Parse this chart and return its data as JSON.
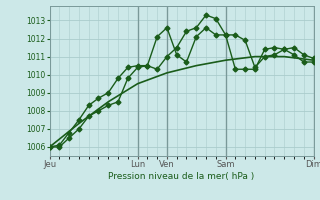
{
  "xlabel": "Pression niveau de la mer( hPa )",
  "ylim": [
    1005.5,
    1013.8
  ],
  "yticks": [
    1006,
    1007,
    1008,
    1009,
    1010,
    1011,
    1012,
    1013
  ],
  "background_color": "#cce8e8",
  "grid_color": "#aacccc",
  "line_color": "#1a5c1a",
  "xtick_labels": [
    "Jeu",
    "Lun",
    "Ven",
    "Sam",
    "Dim"
  ],
  "xtick_positions": [
    0,
    9,
    12,
    18,
    27
  ],
  "vline_positions": [
    9,
    12,
    18,
    27
  ],
  "series1_x": [
    0,
    1,
    2,
    3,
    4,
    5,
    6,
    7,
    8,
    9,
    10,
    11,
    12,
    13,
    14,
    15,
    16,
    17,
    18,
    19,
    20,
    21,
    22,
    23,
    24,
    25,
    26,
    27
  ],
  "series1": [
    1006,
    1006,
    1006.5,
    1007.0,
    1007.7,
    1008.0,
    1008.3,
    1008.5,
    1009.8,
    1010.4,
    1010.5,
    1010.3,
    1011.0,
    1011.5,
    1012.4,
    1012.6,
    1013.3,
    1013.1,
    1012.2,
    1012.2,
    1011.9,
    1010.4,
    1011.0,
    1011.1,
    1011.4,
    1011.5,
    1011.1,
    1010.9
  ],
  "series2_x": [
    0,
    1,
    2,
    3,
    4,
    5,
    6,
    7,
    8,
    9,
    10,
    11,
    12,
    13,
    14,
    15,
    16,
    17,
    18,
    19,
    20,
    21,
    22,
    23,
    24,
    25,
    26,
    27
  ],
  "series2": [
    1006,
    1006.1,
    1006.8,
    1007.5,
    1008.3,
    1008.7,
    1009.0,
    1009.8,
    1010.4,
    1010.5,
    1010.5,
    1012.1,
    1012.6,
    1011.1,
    1010.7,
    1012.1,
    1012.6,
    1012.2,
    1012.2,
    1010.3,
    1010.3,
    1010.3,
    1011.4,
    1011.5,
    1011.4,
    1011.1,
    1010.7,
    1010.7
  ],
  "series3_x": [
    0,
    3,
    6,
    9,
    12,
    15,
    18,
    21,
    24,
    27
  ],
  "series3": [
    1006,
    1007.3,
    1008.5,
    1009.5,
    1010.1,
    1010.5,
    1010.8,
    1011.0,
    1011.0,
    1010.8
  ],
  "xlim": [
    0,
    27
  ],
  "marker": "D",
  "markersize": 2.5
}
